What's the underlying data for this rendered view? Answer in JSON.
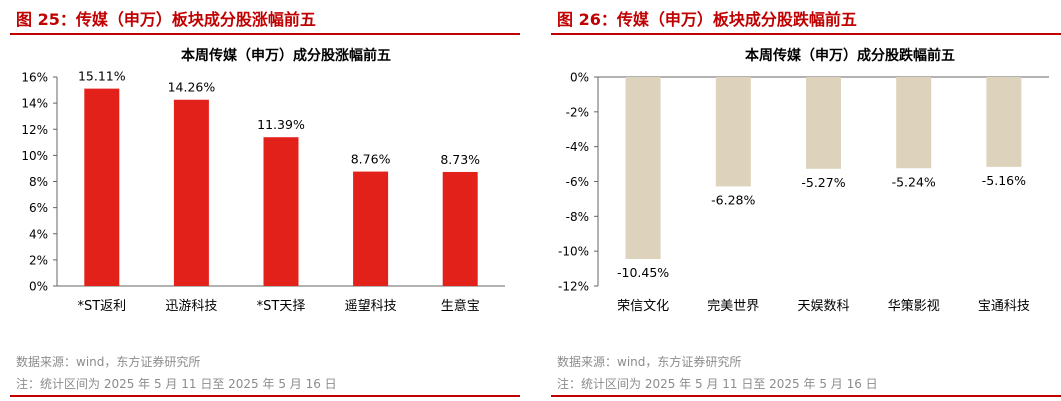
{
  "panels": [
    {
      "figure_title": "图 25：传媒（申万）板块成分股涨幅前五",
      "source": "数据来源：wind，东方证券研究所",
      "note": "注：统计区间为 2025 年 5 月 11 日至 2025 年 5 月 16 日",
      "colors": {
        "bar": "#e3211b",
        "accent": "#c00000"
      },
      "chart_data": {
        "type": "bar",
        "title": "本周传媒（申万）成分股涨幅前五",
        "categories": [
          "*ST返利",
          "迅游科技",
          "*ST天择",
          "遥望科技",
          "生意宝"
        ],
        "values": [
          15.11,
          14.26,
          11.39,
          8.76,
          8.73
        ],
        "data_labels": [
          "15.11%",
          "14.26%",
          "11.39%",
          "8.76%",
          "8.73%"
        ],
        "ylim": [
          0,
          16
        ],
        "yticks": [
          0,
          2,
          4,
          6,
          8,
          10,
          12,
          14,
          16
        ],
        "ytick_labels": [
          "0%",
          "2%",
          "4%",
          "6%",
          "8%",
          "10%",
          "12%",
          "14%",
          "16%"
        ],
        "xlabel": "",
        "ylabel": "",
        "grid": false
      }
    },
    {
      "figure_title": "图 26：传媒（申万）板块成分股跌幅前五",
      "source": "数据来源：wind，东方证券研究所",
      "note": "注：统计区间为 2025 年 5 月 11 日至 2025 年 5 月 16 日",
      "colors": {
        "bar": "#ddd3bd",
        "accent": "#c00000"
      },
      "chart_data": {
        "type": "bar",
        "title": "本周传媒（申万）成分股跌幅前五",
        "categories": [
          "荣信文化",
          "完美世界",
          "天娱数科",
          "华策影视",
          "宝通科技"
        ],
        "values": [
          -10.45,
          -6.28,
          -5.27,
          -5.24,
          -5.16
        ],
        "data_labels": [
          "-10.45%",
          "-6.28%",
          "-5.27%",
          "-5.24%",
          "-5.16%"
        ],
        "ylim": [
          -12,
          0
        ],
        "yticks": [
          0,
          -2,
          -4,
          -6,
          -8,
          -10,
          -12
        ],
        "ytick_labels": [
          "0%",
          "-2%",
          "-4%",
          "-6%",
          "-8%",
          "-10%",
          "-12%"
        ],
        "xlabel": "",
        "ylabel": "",
        "grid": false
      }
    }
  ]
}
